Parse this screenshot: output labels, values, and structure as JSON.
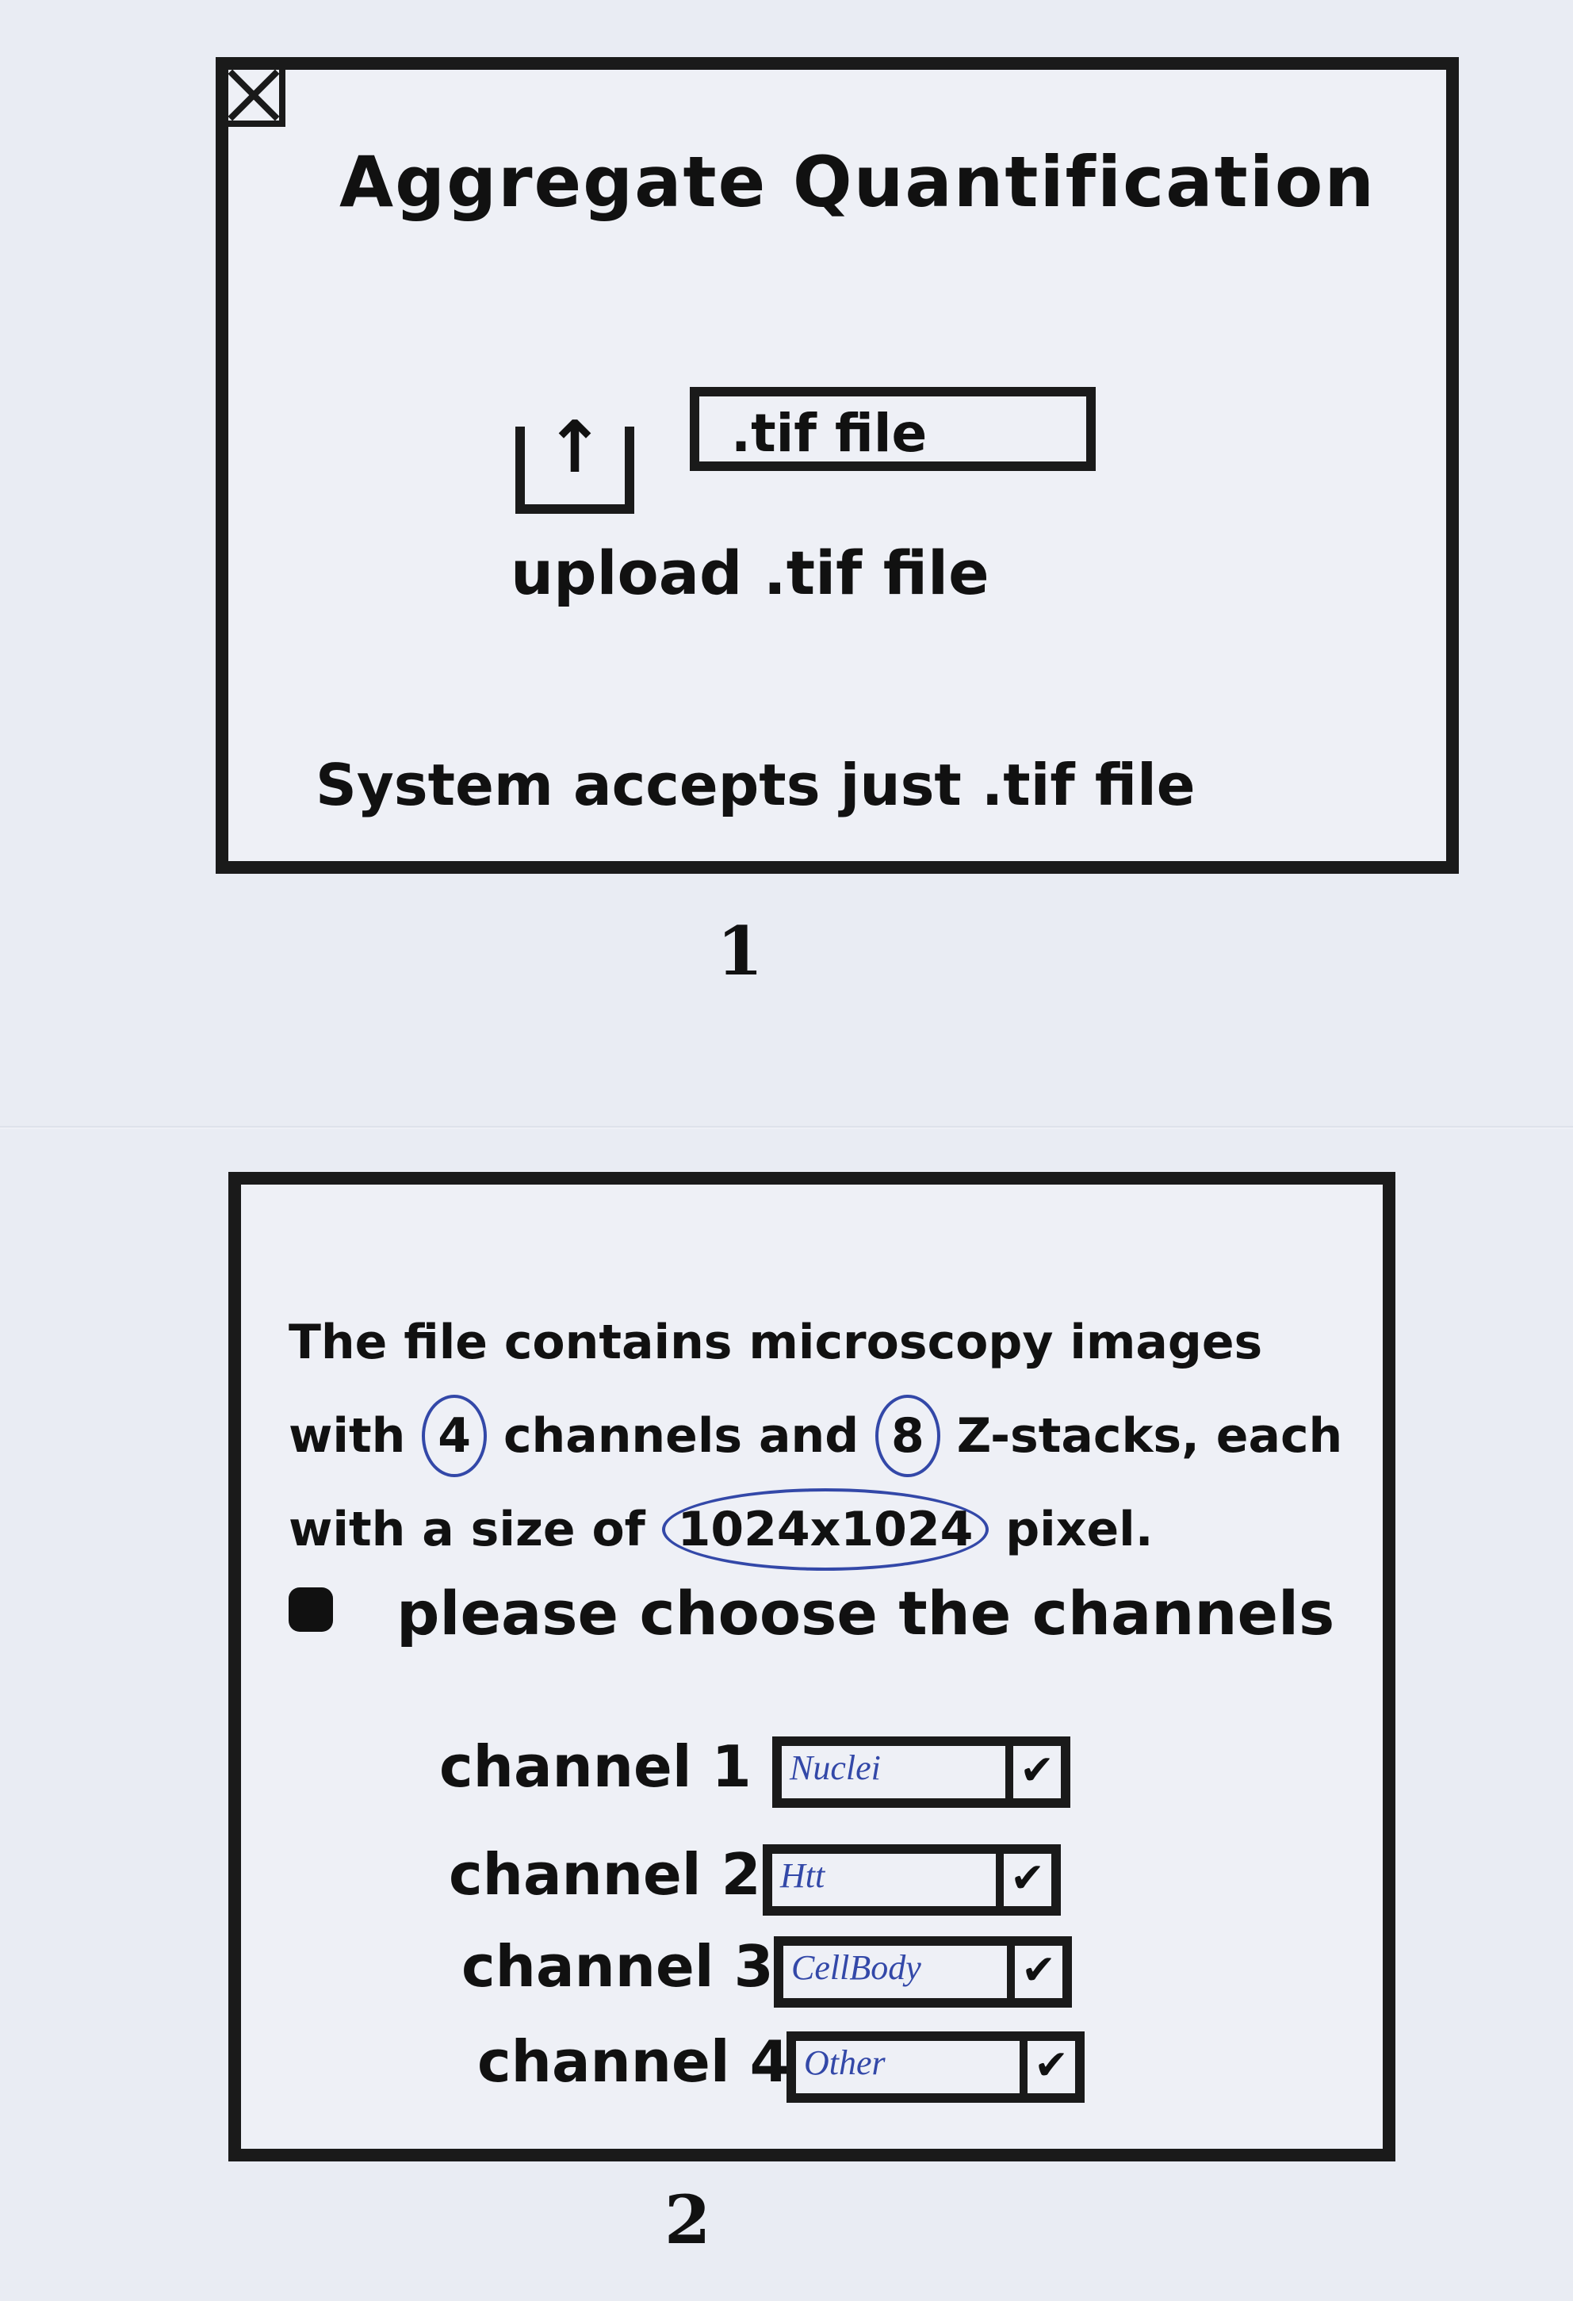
{
  "screen1": {
    "title": "Aggregate Quantification",
    "file_field_value": ".tif file",
    "upload_label": "upload .tif file",
    "hint": "System accepts just .tif file",
    "page_number": "1"
  },
  "screen2": {
    "info": {
      "part1": "The file contains microscopy images with",
      "channels_count": "4",
      "part2": "channels and",
      "zstacks_count": "8",
      "part3": "Z-stacks, each with a size of",
      "size": "1024x1024",
      "part4": "pixel."
    },
    "instruction": "please choose the channels",
    "channels": [
      {
        "label": "channel 1",
        "value": "Nuclei"
      },
      {
        "label": "channel 2",
        "value": "Htt"
      },
      {
        "label": "channel 3",
        "value": "CellBody"
      },
      {
        "label": "channel 4",
        "value": "Other"
      }
    ],
    "dropdown_glyph": "✔",
    "page_number": "2"
  },
  "icons": {
    "close": "close-icon",
    "upload": "upload-icon",
    "dropdown": "checkmark-icon"
  },
  "colors": {
    "ink": "#1a1a1a",
    "pen_blue": "#3348a8",
    "paper": "#eef0f6"
  }
}
